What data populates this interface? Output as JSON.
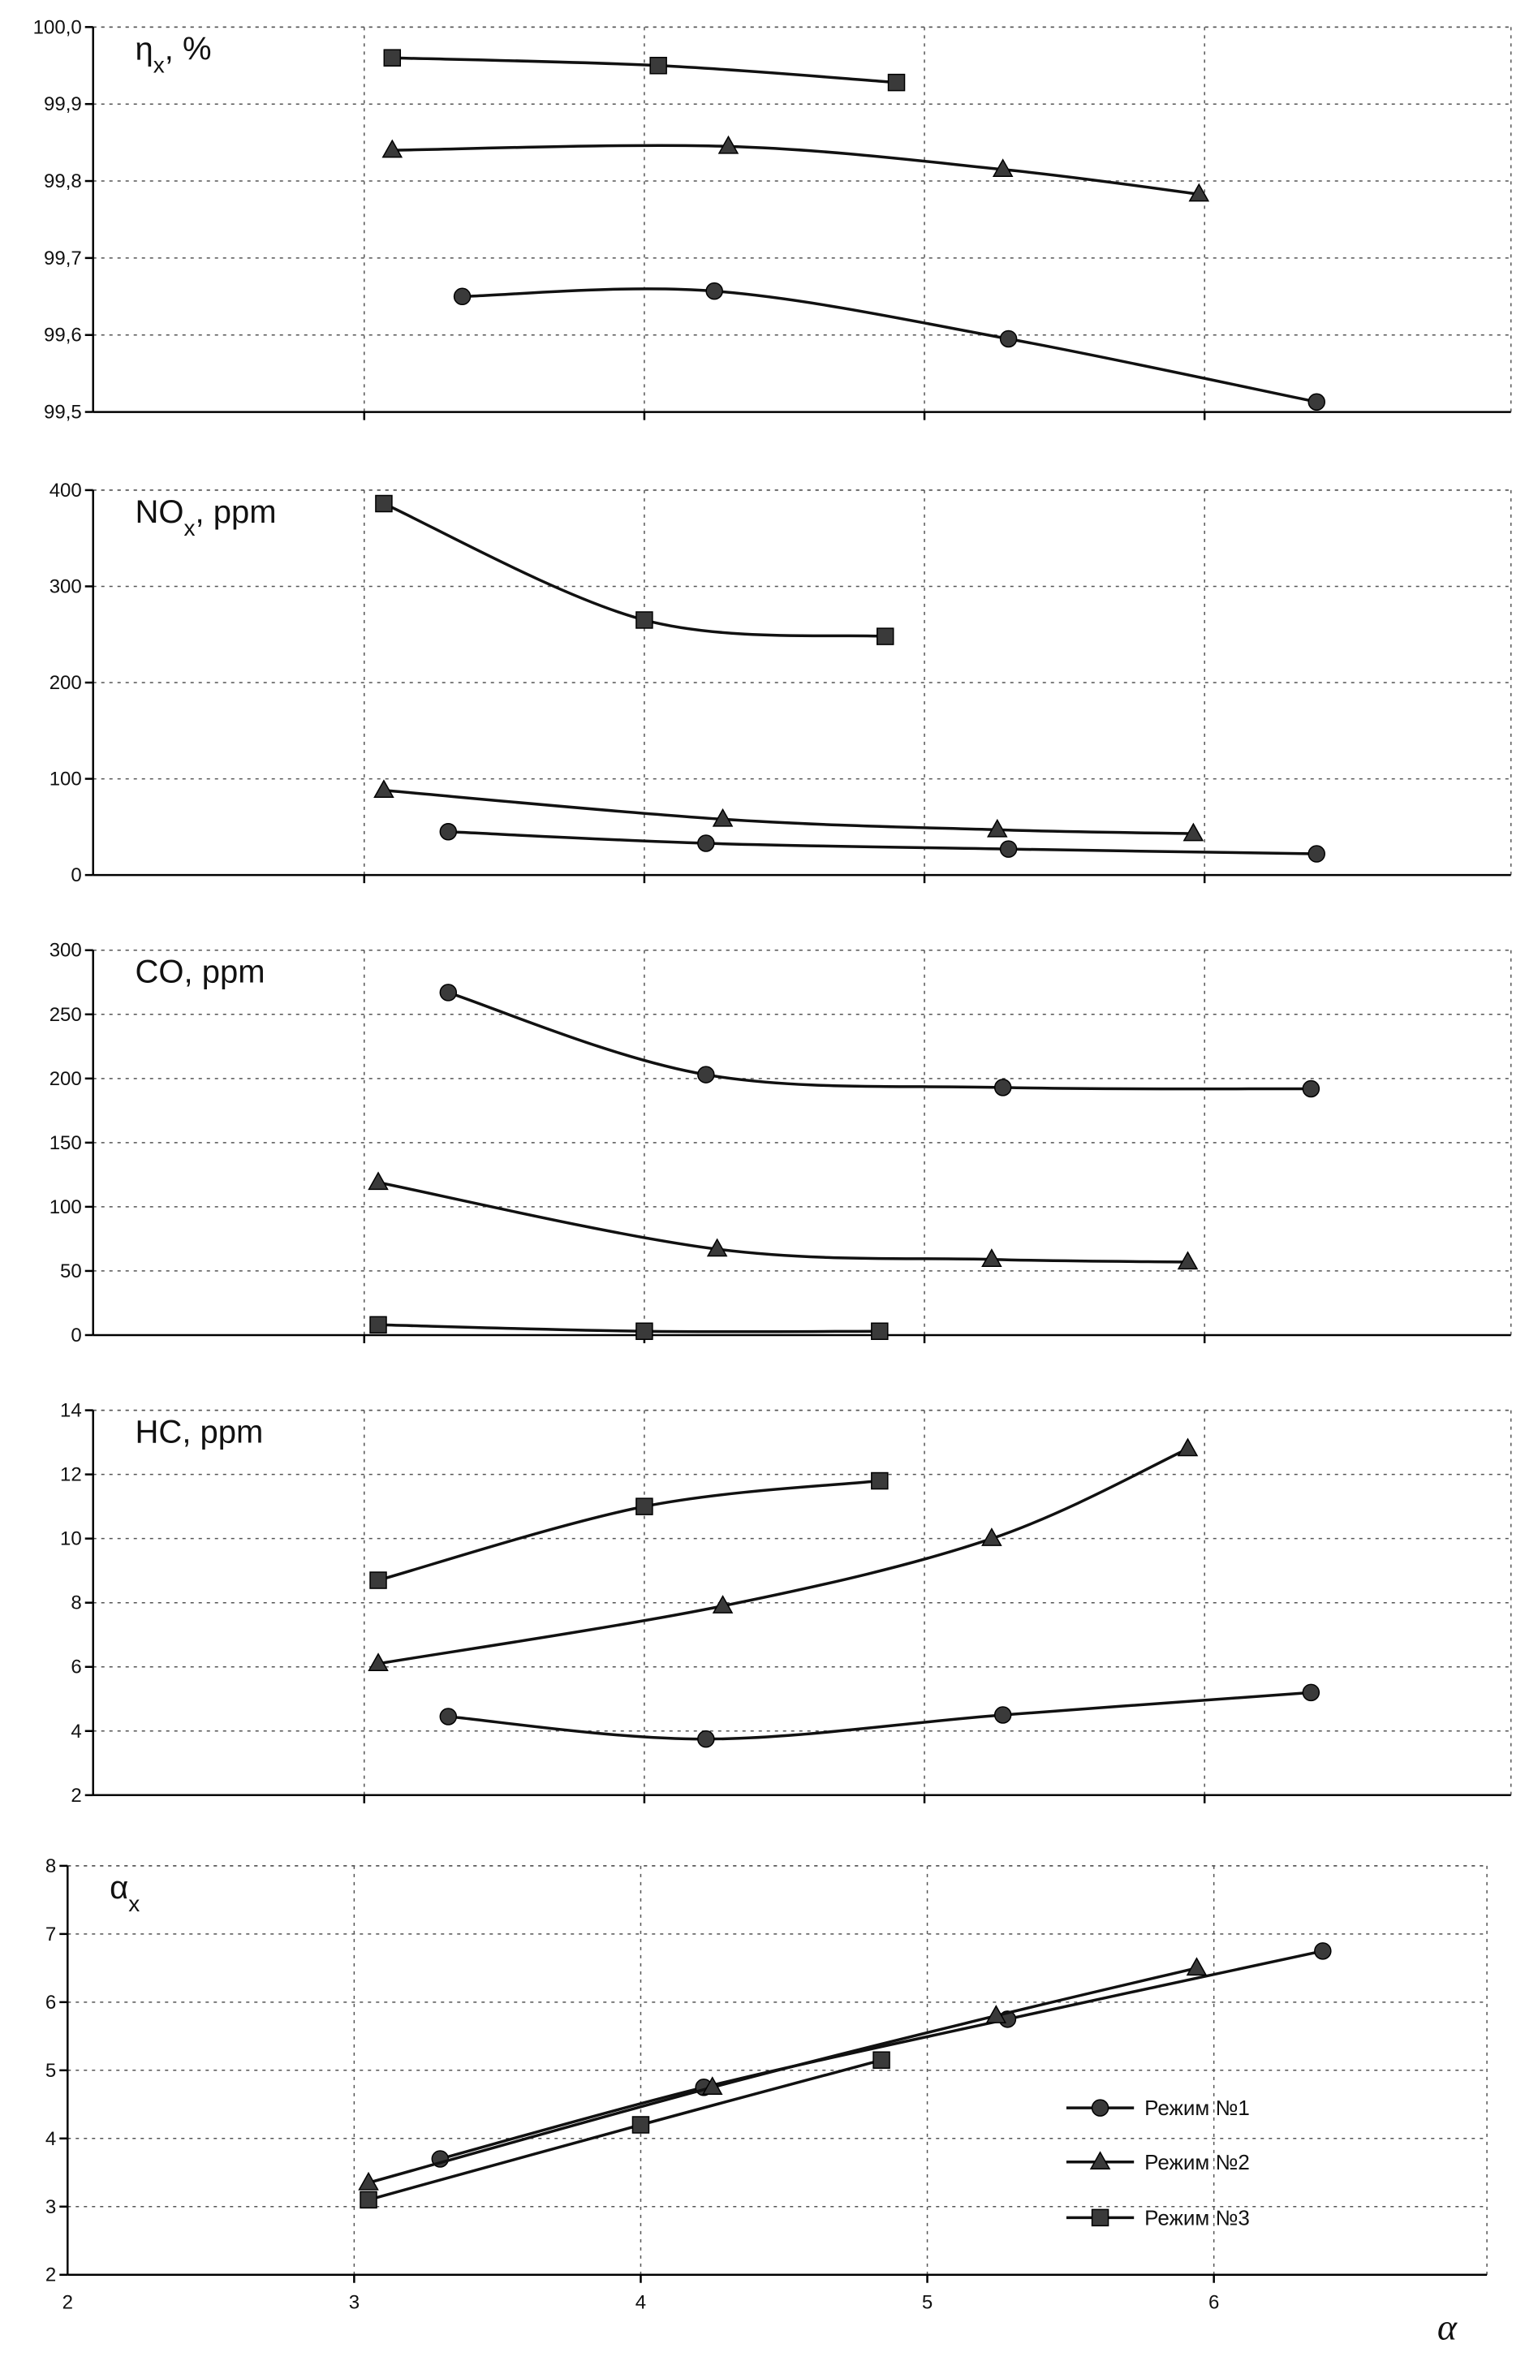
{
  "chart_data": [
    {
      "type": "line",
      "title": "ηx, %",
      "xlim": [
        2,
        7
      ],
      "ylim": [
        99.5,
        100.0
      ],
      "yticks": [
        "99,5",
        "99,6",
        "99,7",
        "99,8",
        "99,9",
        "100,0"
      ],
      "grid": true,
      "series": [
        {
          "marker": "circle",
          "x": [
            3.35,
            4.25,
            5.3,
            6.4
          ],
          "y": [
            99.65,
            99.657,
            99.595,
            99.513
          ]
        },
        {
          "marker": "triangle",
          "x": [
            3.1,
            4.3,
            5.28,
            5.98
          ],
          "y": [
            99.84,
            99.845,
            99.815,
            99.783
          ]
        },
        {
          "marker": "square",
          "x": [
            3.1,
            4.05,
            4.9
          ],
          "y": [
            99.96,
            99.95,
            99.928
          ]
        }
      ]
    },
    {
      "type": "line",
      "title": "NOx, ppm",
      "xlim": [
        2,
        7
      ],
      "ylim": [
        0,
        400
      ],
      "yticks": [
        "0",
        "100",
        "200",
        "300",
        "400"
      ],
      "grid": true,
      "series": [
        {
          "marker": "circle",
          "x": [
            3.3,
            4.22,
            5.3,
            6.4
          ],
          "y": [
            45,
            33,
            27,
            22
          ]
        },
        {
          "marker": "triangle",
          "x": [
            3.07,
            4.28,
            5.26,
            5.96
          ],
          "y": [
            88,
            58,
            47,
            43
          ]
        },
        {
          "marker": "square",
          "x": [
            3.07,
            4.0,
            4.86
          ],
          "y": [
            386,
            265,
            248
          ]
        }
      ]
    },
    {
      "type": "line",
      "title": "CO, ppm",
      "xlim": [
        2,
        7
      ],
      "ylim": [
        0,
        300
      ],
      "yticks": [
        "0",
        "50",
        "100",
        "150",
        "200",
        "250",
        "300"
      ],
      "grid": true,
      "series": [
        {
          "marker": "circle",
          "x": [
            3.3,
            4.22,
            5.28,
            6.38
          ],
          "y": [
            267,
            203,
            193,
            192
          ]
        },
        {
          "marker": "triangle",
          "x": [
            3.05,
            4.26,
            5.24,
            5.94
          ],
          "y": [
            119,
            67,
            59,
            57
          ]
        },
        {
          "marker": "square",
          "x": [
            3.05,
            4.0,
            4.84
          ],
          "y": [
            8,
            3,
            3
          ]
        }
      ]
    },
    {
      "type": "line",
      "title": "HC, ppm",
      "xlim": [
        2,
        7
      ],
      "ylim": [
        2,
        14
      ],
      "yticks": [
        "2",
        "4",
        "6",
        "8",
        "10",
        "12",
        "14"
      ],
      "grid": true,
      "series": [
        {
          "marker": "circle",
          "x": [
            3.3,
            4.22,
            5.28,
            6.38
          ],
          "y": [
            4.45,
            3.75,
            4.5,
            5.2
          ]
        },
        {
          "marker": "triangle",
          "x": [
            3.05,
            4.28,
            5.24,
            5.94
          ],
          "y": [
            6.1,
            7.9,
            10.0,
            12.8
          ]
        },
        {
          "marker": "square",
          "x": [
            3.05,
            4.0,
            4.84
          ],
          "y": [
            8.7,
            11.0,
            11.8
          ]
        }
      ]
    },
    {
      "type": "line",
      "title": "αx",
      "xlabel": "α",
      "xlim": [
        2,
        7
      ],
      "ylim": [
        2,
        8
      ],
      "xticks": [
        "2",
        "3",
        "4",
        "5",
        "6"
      ],
      "yticks": [
        "2",
        "3",
        "4",
        "5",
        "6",
        "7",
        "8"
      ],
      "grid": true,
      "legend_position": "bottom-right",
      "series": [
        {
          "name": "Режим №1",
          "marker": "circle",
          "x": [
            3.3,
            4.22,
            5.28,
            6.38
          ],
          "y": [
            3.7,
            4.75,
            5.75,
            6.75
          ]
        },
        {
          "name": "Режим №2",
          "marker": "triangle",
          "x": [
            3.05,
            4.25,
            5.24,
            5.94
          ],
          "y": [
            3.35,
            4.75,
            5.8,
            6.5
          ]
        },
        {
          "name": "Режим №3",
          "marker": "square",
          "x": [
            3.05,
            4.0,
            4.84
          ],
          "y": [
            3.1,
            4.2,
            5.15
          ]
        }
      ]
    }
  ]
}
